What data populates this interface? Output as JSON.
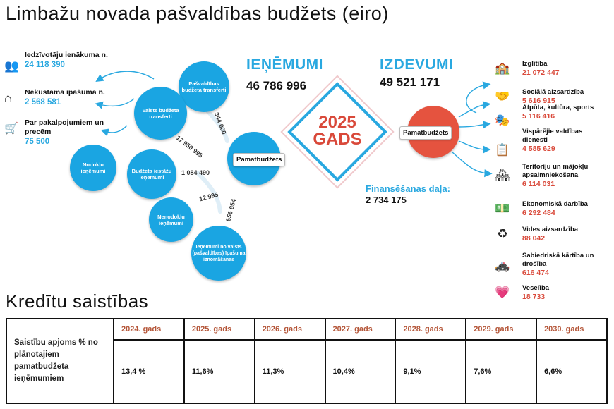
{
  "title": "Limbažu novada pašvaldības budžets (eiro)",
  "income_sources": [
    {
      "label": "Iedzīvotāju ienākuma n.",
      "value": "24 118 390",
      "icon": "people-icon"
    },
    {
      "label": "Nekustamā īpašuma n.",
      "value": "2 568 581",
      "icon": "house-icon"
    },
    {
      "label": "Par pakalpojumiem un precēm",
      "value": "75 500",
      "icon": "cart-icon"
    }
  ],
  "bubbles": {
    "transfer_state": "Valsts budžeta transferti",
    "transfer_municipal": "Pašvaldības budžeta transferti",
    "tax_revenue": "Nodokļu ieņēmumi",
    "institution_revenue": "Budžeta iestāžu ieņēmumi",
    "non_tax_revenue": "Nenodokļu ieņēmumi",
    "property_sale": "Ieņēmumi no valsts (pašvaldības) īpašuma iznomāšanas"
  },
  "flow_values": {
    "state_transfers": "17 950 995",
    "municipal_transfers": "344 000",
    "institution": "1 084 490",
    "non_tax": "12 995",
    "property": "556 654"
  },
  "pamatbudzets_label": "Pamatbudžets",
  "income": {
    "heading": "IEŅĒMUMI",
    "value": "46 786 996"
  },
  "expenses": {
    "heading": "IZDEVUMI",
    "value": "49 521 171"
  },
  "center": {
    "year": "2025",
    "word": "GADS"
  },
  "financing": {
    "label": "Finansēšanas daļa:",
    "value": "2 734 175"
  },
  "expense_items": [
    {
      "label": "Izglītība",
      "value": "21 072 447",
      "icon": "school-icon"
    },
    {
      "label": "Sociālā aizsardzība",
      "value": "5 616 915",
      "icon": "handshake-icon"
    },
    {
      "label": "Atpūta, kultūra, sports",
      "value": "5 116 416",
      "icon": "culture-icon"
    },
    {
      "label": "Vispārējie valdības dienesti",
      "value": "4 585 629",
      "icon": "clipboard-icon"
    },
    {
      "label": "Teritoriju un mājokļu apsaimniekošana",
      "value": "6 114 031",
      "icon": "housing-icon"
    },
    {
      "label": "Ekonomiskā darbība",
      "value": "6 292 484",
      "icon": "money-icon"
    },
    {
      "label": "Vides aizsardzība",
      "value": "88 042",
      "icon": "leaf-cycle-icon"
    },
    {
      "label": "Sabiedriskā kārtība un drošība",
      "value": "616 474",
      "icon": "car-icon"
    },
    {
      "label": "Veselība",
      "value": "18 733",
      "icon": "heart-hand-icon"
    }
  ],
  "credit": {
    "title": "Kredītu saistības",
    "row_label": "Saistību apjoms % no plānotajiem pamatbudžeta ieņēmumiem",
    "years": [
      "2024. gads",
      "2025. gads",
      "2026. gads",
      "2027. gads",
      "2028. gads",
      "2029. gads",
      "2030. gads"
    ],
    "values": [
      "13,4 %",
      "11,6%",
      "11,3%",
      "10,4%",
      "9,1%",
      "7,6%",
      "6,6%"
    ]
  }
}
